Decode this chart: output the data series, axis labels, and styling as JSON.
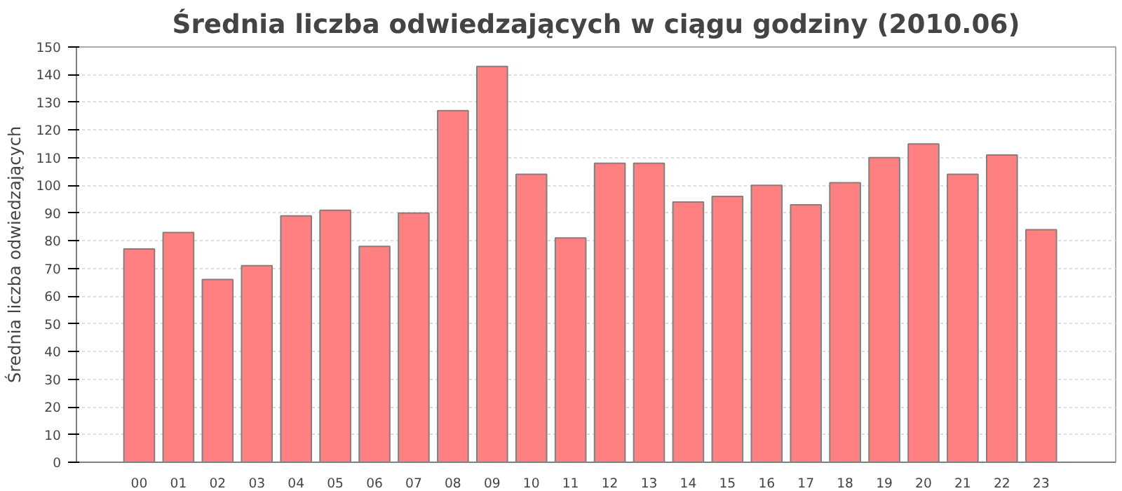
{
  "chart_data": {
    "type": "bar",
    "title": "Średnia liczba odwiedzających w ciągu godziny (2010.06)",
    "ylabel": "Średnia liczba odwiedzających",
    "categories": [
      "00",
      "01",
      "02",
      "03",
      "04",
      "05",
      "06",
      "07",
      "08",
      "09",
      "10",
      "11",
      "12",
      "13",
      "14",
      "15",
      "16",
      "17",
      "18",
      "19",
      "20",
      "21",
      "22",
      "23"
    ],
    "values": [
      77,
      83,
      66,
      71,
      89,
      91,
      78,
      90,
      127,
      143,
      104,
      81,
      108,
      108,
      94,
      96,
      100,
      93,
      101,
      110,
      115,
      104,
      111,
      84
    ],
    "color": "#ff8080",
    "ylim": [
      0,
      150
    ],
    "yticks": [
      0,
      10,
      20,
      30,
      40,
      50,
      60,
      70,
      80,
      90,
      100,
      110,
      120,
      130,
      140,
      150
    ],
    "grid": "y"
  }
}
